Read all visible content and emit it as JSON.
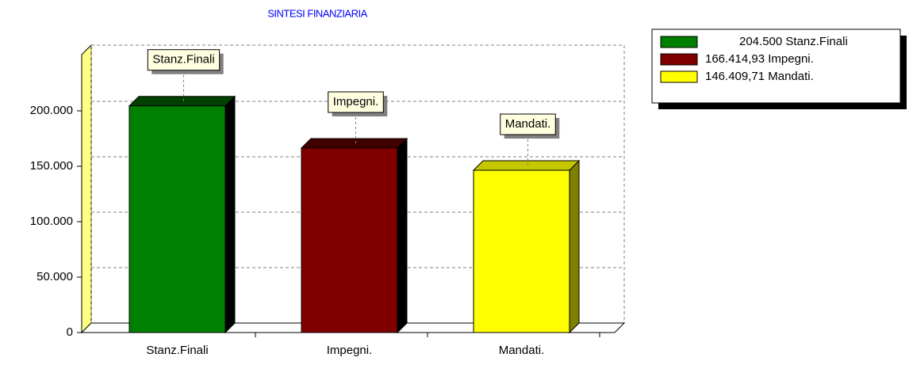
{
  "chart_data": {
    "type": "bar3d",
    "title": "SINTESI FINANZIARIA",
    "categories": [
      "Stanz.Finali",
      "Impegni.",
      "Mandati."
    ],
    "values": [
      204500,
      166414.93,
      146409.71
    ],
    "value_labels": [
      "204.500",
      "166.414,93",
      "146.409,71"
    ],
    "colors": [
      "#008000",
      "#800000",
      "#ffff00"
    ],
    "ylim": [
      0,
      250000
    ],
    "yticks": [
      0,
      {
        "value": 50000,
        "label": "50.000"
      },
      {
        "value": 100000,
        "label": "100.000"
      },
      {
        "value": 150000,
        "label": "150.000"
      },
      {
        "value": 200000,
        "label": "200.000"
      }
    ],
    "grid": true
  }
}
